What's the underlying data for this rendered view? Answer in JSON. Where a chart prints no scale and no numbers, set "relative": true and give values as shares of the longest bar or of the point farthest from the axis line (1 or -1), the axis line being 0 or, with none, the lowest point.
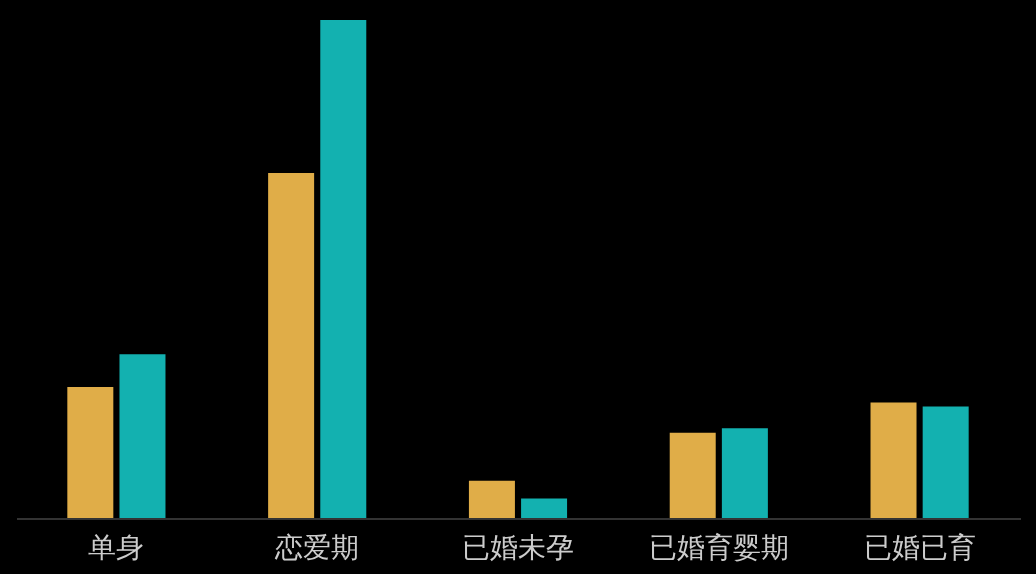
{
  "chart_data": {
    "type": "bar",
    "relative": true,
    "legend": false,
    "categories": [
      "单身",
      "恋爱期",
      "已婚未孕",
      "已婚育婴期",
      "已婚已育"
    ],
    "series": [
      {
        "color": "#e0ad48",
        "values": [
          0.263,
          0.693,
          0.075,
          0.171,
          0.232
        ]
      },
      {
        "color": "#13b1b0",
        "values": [
          0.329,
          1,
          0.039,
          0.18,
          0.224
        ]
      }
    ]
  }
}
